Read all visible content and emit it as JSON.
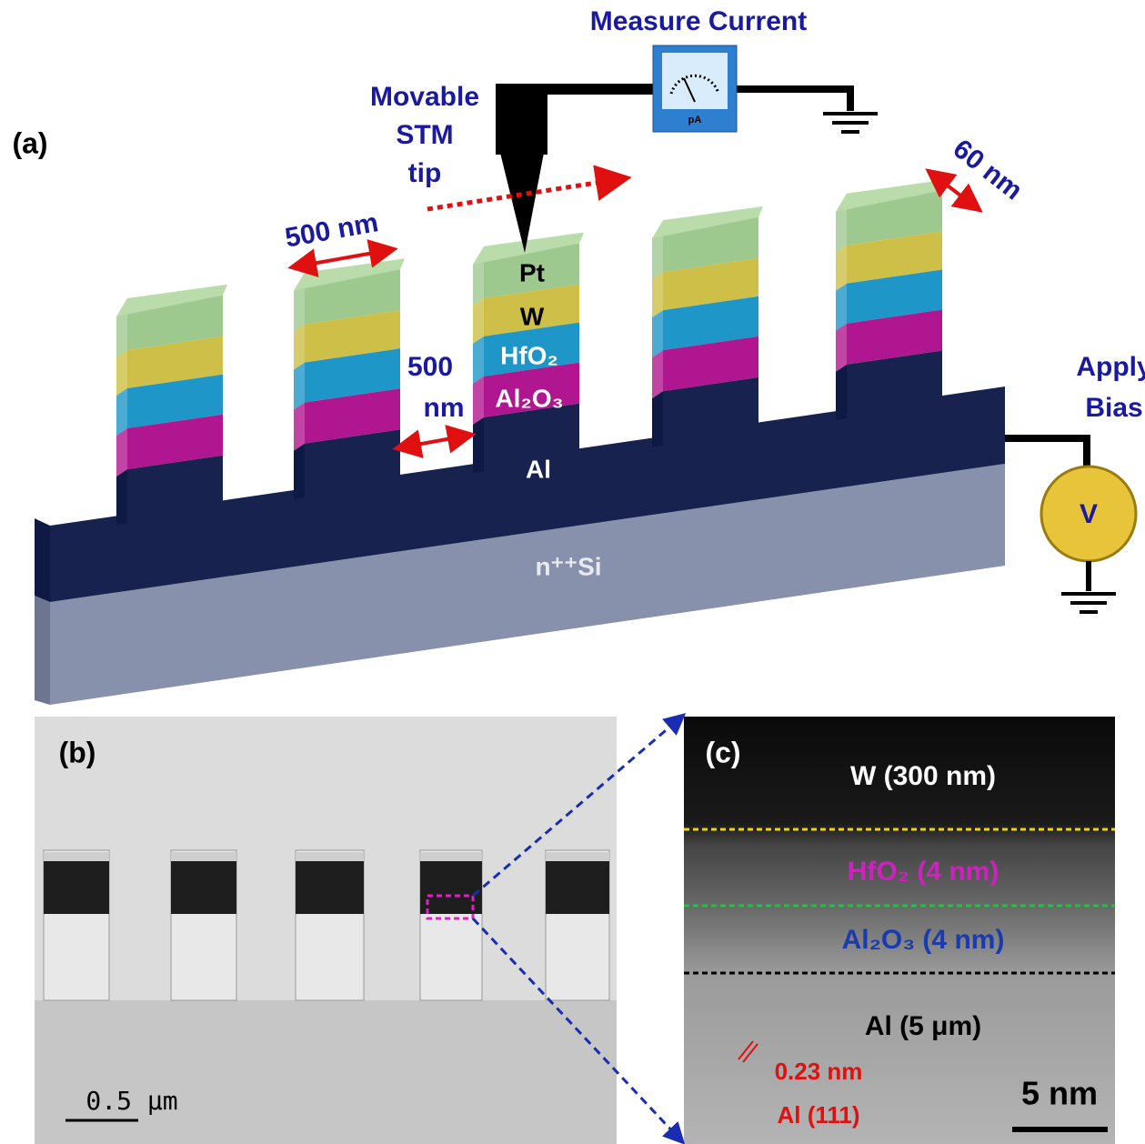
{
  "panel_a": {
    "label": "(a)",
    "measure_current": "Measure Current",
    "ammeter_unit": "pA",
    "tip_label": [
      "Movable",
      "STM",
      "tip"
    ],
    "layers": {
      "pt": "Pt",
      "w": "W",
      "hfo2": "HfO₂",
      "al2o3": "Al₂O₃",
      "al": "Al",
      "si": "n⁺⁺Si"
    },
    "width_label": "500 nm",
    "gap_label": [
      "500",
      "nm"
    ],
    "depth_label": "60 nm",
    "bias_label": [
      "Apply",
      "Bias"
    ],
    "source_label": "V"
  },
  "panel_b": {
    "label": "(b)",
    "scale_bar": "0.5 μm"
  },
  "panel_c": {
    "label": "(c)",
    "w_layer": "W (300 nm)",
    "hfo2_layer": "HfO₂ (4 nm)",
    "al2o3_layer": "Al₂O₃ (4 nm)",
    "al_layer": "Al (5 μm)",
    "spacing": "0.23 nm",
    "plane": "Al (111)",
    "scale_bar": "5 nm"
  }
}
